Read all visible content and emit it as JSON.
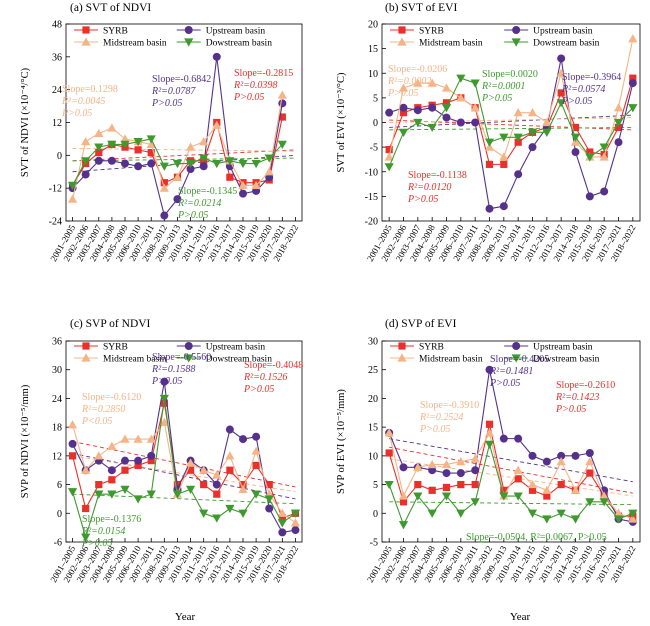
{
  "figure": {
    "xlabel": "Year"
  },
  "series_names": [
    "SYRB",
    "Upstream basin",
    "Midstream basin",
    "Dowstream basin"
  ],
  "colors": {
    "SYRB": "#e8312a",
    "Upstream": "#55318c",
    "Midstream": "#f5b487",
    "Downstream": "#3e9a2e"
  },
  "categories": [
    "2001–2005",
    "2002–2006",
    "2003–2007",
    "2004–2008",
    "2005–2009",
    "2006–2010",
    "2007–2011",
    "2008–2012",
    "2009–2013",
    "2010–2014",
    "2011–2015",
    "2012–2016",
    "2013–2017",
    "2014–2018",
    "2015–2019",
    "2016–2020",
    "2017–2021",
    "2018–2022"
  ],
  "chart_data": [
    {
      "type": "line",
      "title": "(a) SVT of NDVI",
      "ylabel": "SVT of NDVI (×10⁻⁴/°C)",
      "ylim": [
        -24,
        48
      ],
      "yticks": [
        -24,
        -12,
        0,
        12,
        24,
        36,
        48
      ],
      "legend": "top",
      "series": [
        {
          "name": "SYRB",
          "values": [
            -11,
            -3,
            1,
            4,
            3,
            2,
            1,
            -10,
            -8,
            -2,
            -2,
            12,
            -8,
            -10,
            -10,
            -9,
            14,
            null
          ]
        },
        {
          "name": "Upstream basin",
          "values": [
            -12,
            -7,
            -2,
            -2,
            -3,
            -4,
            -3,
            -22,
            -16,
            -5,
            -4,
            36,
            -4,
            -14,
            -13,
            -8,
            19,
            null
          ]
        },
        {
          "name": "Midstream basin",
          "values": [
            -16,
            5,
            8,
            10,
            6,
            5,
            4,
            -12,
            -8,
            3,
            5,
            11,
            -2,
            -11,
            -11,
            -6,
            22,
            null
          ]
        },
        {
          "name": "Dowstream basin",
          "values": [
            -11,
            -2,
            3,
            4,
            4,
            5,
            6,
            -4,
            -3,
            -3,
            -1,
            -3,
            -2,
            -3,
            -3,
            -1,
            4,
            null
          ]
        }
      ],
      "annotations": [
        {
          "series": "Midstream basin",
          "lines": [
            "Slope=0.1298",
            "R²=0.0045",
            "P>0.05"
          ]
        },
        {
          "series": "Upstream basin",
          "lines": [
            "Slope=-0.6842",
            "R²=0.0787",
            "P>0.05"
          ]
        },
        {
          "series": "SYRB",
          "lines": [
            "Slope=-0.2815",
            "R²=0.0398",
            "P>0.05"
          ]
        },
        {
          "series": "Dowstream basin",
          "lines": [
            "Slope=-0.1345",
            "R²=0.0214",
            "P>0.05"
          ]
        }
      ],
      "trend": [
        [
          -2,
          2
        ],
        [
          -6,
          0
        ],
        [
          2.5,
          1.5
        ],
        [
          -2,
          -1
        ]
      ]
    },
    {
      "type": "line",
      "title": "(b) SVT of EVI",
      "ylabel": "SVT of EVI (×10⁻³/°C)",
      "ylim": [
        -20,
        20
      ],
      "yticks": [
        -20,
        -15,
        -10,
        -5,
        0,
        5,
        10,
        15,
        20
      ],
      "legend": "top",
      "series": [
        {
          "name": "SYRB",
          "values": [
            -5.5,
            2,
            3,
            3.5,
            4,
            5,
            3,
            -8.5,
            -8.5,
            -4,
            -2,
            -1,
            6,
            -1,
            -6,
            -6.5,
            -1,
            9
          ]
        },
        {
          "name": "Upstream basin",
          "values": [
            2,
            3,
            2.5,
            3,
            1,
            0,
            0,
            -17.5,
            -17,
            -10.5,
            -5,
            -1,
            13,
            -6,
            -15,
            -14,
            -4,
            8
          ]
        },
        {
          "name": "Midstream basin",
          "values": [
            -7,
            7,
            8,
            8,
            7,
            5,
            3,
            -5,
            -7,
            2,
            2,
            0,
            10,
            -4,
            -7,
            -7,
            3,
            17
          ]
        },
        {
          "name": "Dowstream basin",
          "values": [
            -9,
            -2,
            0,
            -1,
            3,
            9,
            8,
            -4,
            -3,
            -3,
            -2,
            -2,
            4,
            -3,
            -7,
            -5,
            0,
            3
          ]
        }
      ],
      "annotations": [
        {
          "series": "Midstream basin",
          "lines": [
            "Slope=-0.0206",
            "R²=0.0002",
            "P>0.05"
          ]
        },
        {
          "series": "Dowstream basin",
          "lines": [
            "Slope=0.0020",
            "R²=0.0001",
            "P>0.05"
          ]
        },
        {
          "series": "Upstream basin",
          "lines": [
            "Slope=-0.3964",
            "R²=0.0574",
            "P>0.05"
          ]
        },
        {
          "series": "SYRB",
          "lines": [
            "Slope=-0.1138",
            "R²=0.0120",
            "P>0.05"
          ]
        }
      ],
      "trend": [
        [
          0.5,
          -1.5
        ],
        [
          -1,
          1.5
        ],
        [
          0,
          1
        ],
        [
          -1.5,
          -1
        ]
      ]
    },
    {
      "type": "line",
      "title": "(c) SVP of NDVI",
      "ylabel": "SVP of NDVI (×10⁻⁵/mm)",
      "ylim": [
        -6,
        36
      ],
      "yticks": [
        -6,
        0,
        6,
        12,
        18,
        24,
        30,
        36
      ],
      "legend": "top",
      "series": [
        {
          "name": "SYRB",
          "values": [
            12,
            1,
            6,
            7,
            9,
            10,
            11,
            23,
            6,
            9,
            6,
            4,
            9,
            6,
            10,
            6,
            -1,
            0
          ]
        },
        {
          "name": "Upstream basin",
          "values": [
            14.5,
            9,
            11,
            9,
            11,
            11,
            12,
            27.5,
            5,
            11,
            9,
            6,
            17.5,
            15.5,
            16,
            1,
            -4,
            -3.5
          ]
        },
        {
          "name": "Midstream basin",
          "values": [
            18.5,
            9,
            12,
            14,
            15.5,
            15.5,
            15.5,
            19,
            4,
            10.5,
            9,
            8,
            12,
            5,
            13,
            4,
            0,
            -2
          ]
        },
        {
          "name": "Dowstream basin",
          "values": [
            4.5,
            -5,
            4,
            4,
            5,
            3,
            4,
            24,
            4,
            5,
            0,
            -1,
            1,
            0,
            4,
            3,
            -2,
            0
          ]
        }
      ],
      "annotations": [
        {
          "series": "Midstream basin",
          "lines": [
            "Slope=-0.6120",
            "R²=0.2850",
            "P<0.05"
          ]
        },
        {
          "series": "Upstream basin",
          "lines": [
            "Slope=-0.5560",
            "R²=0.1588",
            "P>0.05"
          ]
        },
        {
          "series": "SYRB",
          "lines": [
            "Slope=-0.4048",
            "R²=0.1526",
            "P>0.05"
          ]
        },
        {
          "series": "Dowstream basin",
          "lines": [
            "Slope=-0.1376",
            "R²=0.0154",
            "P>0.05"
          ]
        }
      ],
      "trend": [
        [
          15,
          5.5
        ],
        [
          12.5,
          3
        ],
        [
          12,
          4.5
        ],
        [
          4,
          2
        ]
      ]
    },
    {
      "type": "line",
      "title": "(d) SVP of EVI",
      "ylabel": "SVP of EVI (×10⁻⁵/mm)",
      "ylim": [
        -5,
        30
      ],
      "yticks": [
        -5,
        0,
        5,
        10,
        15,
        20,
        25,
        30
      ],
      "legend": "top",
      "series": [
        {
          "name": "SYRB",
          "values": [
            10.5,
            2,
            5,
            4,
            4.5,
            5,
            5,
            15.5,
            4,
            6,
            4,
            3,
            5,
            4,
            7,
            3,
            -0.5,
            -0.5
          ]
        },
        {
          "name": "Upstream basin",
          "values": [
            14,
            8,
            8,
            7.5,
            7,
            7,
            7.5,
            25,
            13,
            13,
            10,
            9,
            10,
            10,
            10.5,
            4,
            -1,
            -1.5
          ]
        },
        {
          "name": "Midstream basin",
          "values": [
            14,
            3,
            8,
            8.5,
            8.5,
            9,
            9.5,
            14,
            3,
            7.5,
            5,
            4,
            9,
            4,
            9,
            3,
            0,
            -1
          ]
        },
        {
          "name": "Dowstream basin",
          "values": [
            5,
            -2,
            3,
            0,
            3,
            0,
            2,
            12,
            3,
            3,
            0,
            -1,
            0,
            -1,
            2,
            2,
            -1,
            0
          ]
        }
      ],
      "annotations": [
        {
          "series": "Midstream basin",
          "lines": [
            "Slope=-0.3910",
            "R²=0.2524",
            "P>0.05"
          ]
        },
        {
          "series": "Upstream basin",
          "lines": [
            "Slope=-0.4205",
            "R²=0.1481",
            "P>0.05"
          ]
        },
        {
          "series": "SYRB",
          "lines": [
            "Slope=-0.2610",
            "R²=0.1423",
            "P>0.05"
          ]
        },
        {
          "series": "Dowstream basin",
          "lines": [
            "Slope=-0.0504, R²=0.0067, P>0.05"
          ]
        }
      ],
      "trend": [
        [
          11.5,
          3.5
        ],
        [
          13,
          5.5
        ],
        [
          9.5,
          3
        ],
        [
          2,
          1.5
        ]
      ]
    }
  ]
}
